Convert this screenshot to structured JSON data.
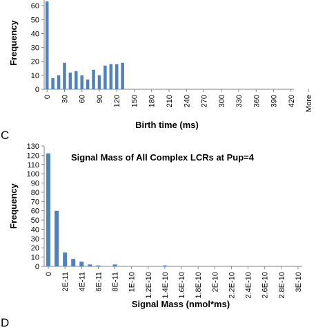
{
  "panel_letters": [
    "C",
    "D"
  ],
  "chart_data": [
    {
      "type": "bar",
      "title": "",
      "xlabel": "Birth time (ms)",
      "ylabel": "Frequency",
      "ylim": [
        0,
        70
      ],
      "yticks": [
        0,
        10,
        20,
        30,
        40,
        50,
        60
      ],
      "xticks": [
        "0",
        "30",
        "60",
        "90",
        "120",
        "150",
        "180",
        "210",
        "240",
        "270",
        "300",
        "330",
        "360",
        "390",
        "420",
        "More"
      ],
      "bin_width": 10,
      "x": [
        0,
        10,
        20,
        30,
        40,
        50,
        60,
        70,
        80,
        90,
        100,
        110,
        120,
        130,
        140,
        150,
        160,
        170,
        180,
        190,
        200,
        210,
        220,
        230,
        240,
        250,
        260,
        270,
        280,
        290,
        300,
        310,
        320,
        330,
        340,
        350,
        360,
        370,
        380,
        390,
        400,
        410,
        420
      ],
      "values": [
        63,
        8,
        10,
        19,
        12,
        13,
        10,
        7,
        14,
        10,
        17,
        18,
        18,
        19,
        0,
        0,
        0,
        0,
        0,
        0,
        0,
        0,
        0,
        0,
        0,
        0,
        0,
        0,
        0,
        0,
        0,
        0,
        0,
        0,
        0,
        0,
        0,
        0,
        0,
        0,
        0,
        0,
        0
      ],
      "grid": false,
      "color": "#4F81BD"
    },
    {
      "type": "bar",
      "title": "Signal Mass of All Complex LCRs at Pup=4",
      "xlabel": "Signal Mass (nmol*ms)",
      "ylabel": "Frequency",
      "ylim": [
        0,
        130
      ],
      "yticks": [
        0,
        10,
        20,
        30,
        40,
        50,
        60,
        70,
        80,
        90,
        100,
        110,
        120,
        130
      ],
      "xticks": [
        "0",
        "2E-11",
        "4E-11",
        "6E-11",
        "8E-11",
        "1E-10",
        "1.2E-10",
        "1.4E-10",
        "1.6E-10",
        "1.8E-10",
        "2E-10",
        "2.2E-10",
        "2.4E-10",
        "2.6E-10",
        "2.8E-10",
        "3E-10"
      ],
      "values": [
        122,
        60,
        15,
        8,
        5,
        2,
        1,
        0,
        2,
        0,
        0,
        0,
        0,
        0,
        1,
        0,
        0,
        0,
        0,
        0,
        0,
        0,
        0,
        0,
        0,
        0,
        0,
        0,
        0,
        0,
        0
      ],
      "grid": false,
      "color": "#4F81BD"
    }
  ]
}
